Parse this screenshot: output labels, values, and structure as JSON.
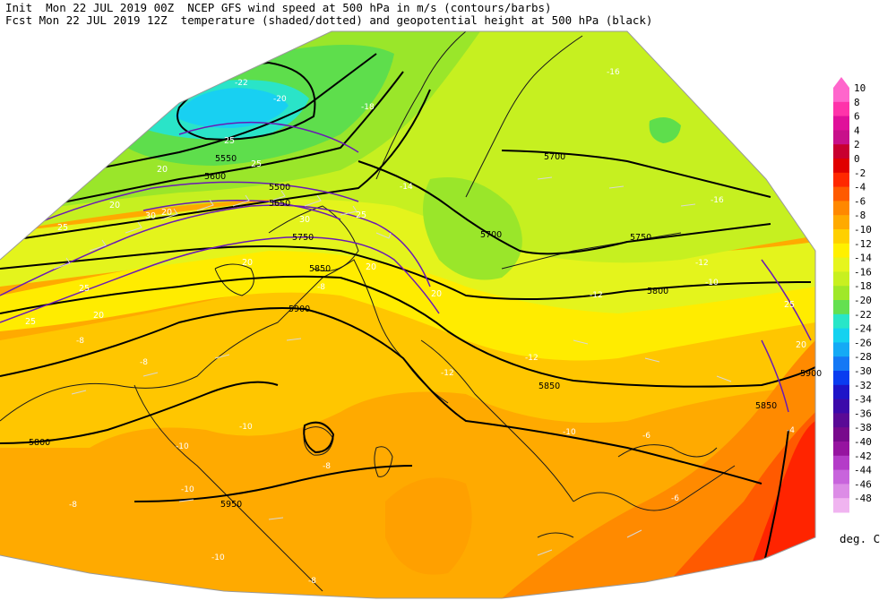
{
  "header": {
    "line1": "Init  Mon 22 JUL 2019 00Z  NCEP GFS wind speed at 500 hPa in m/s (contours/barbs)",
    "line2": "Fcst Mon 22 JUL 2019 12Z  temperature (shaded/dotted) and geopotential height at 500 hPa (black)"
  },
  "colorbar": {
    "unit_label": "deg. C",
    "levels": [
      "10",
      "8",
      "6",
      "4",
      "2",
      "0",
      "-2",
      "-4",
      "-6",
      "-8",
      "-10",
      "-12",
      "-14",
      "-16",
      "-18",
      "-20",
      "-22",
      "-24",
      "-26",
      "-28",
      "-30",
      "-32",
      "-34",
      "-36",
      "-38",
      "-40",
      "-42",
      "-44",
      "-46",
      "-48"
    ],
    "colors": [
      "#ff66cc",
      "#ff33aa",
      "#e0109a",
      "#c8108a",
      "#c80030",
      "#e00000",
      "#ff2800",
      "#ff5a00",
      "#ff8800",
      "#ffaa00",
      "#ffd000",
      "#fff000",
      "#e6f51e",
      "#c8f020",
      "#a0e828",
      "#64e050",
      "#28e6c8",
      "#14d2f0",
      "#14aaf5",
      "#1478f5",
      "#0a3cf0",
      "#1e14c8",
      "#3c0aaa",
      "#5a0a96",
      "#780a8c",
      "#9614a0",
      "#b43cc8",
      "#c864dc",
      "#dc8ce6",
      "#f0b4f0"
    ]
  },
  "height_labels": [
    "5700",
    "5750",
    "5800",
    "5850",
    "5900",
    "5950",
    "5800",
    "5850",
    "5900",
    "5850",
    "5750",
    "5700",
    "5600",
    "5650",
    "5550",
    "5500"
  ],
  "temp_labels": [
    "-22",
    "-20",
    "-18",
    "-16",
    "-16",
    "-14",
    "-12",
    "-12",
    "-10",
    "-10",
    "-8",
    "-8",
    "-8",
    "-10",
    "-12",
    "-8",
    "-6",
    "-10",
    "-10",
    "-8",
    "-8",
    "-6",
    "-4",
    "-12",
    "-10"
  ],
  "wind_labels": [
    "20",
    "25",
    "25",
    "30",
    "20",
    "20",
    "25",
    "30",
    "25",
    "20",
    "25",
    "20",
    "25",
    "20",
    "20",
    "25",
    "20"
  ]
}
